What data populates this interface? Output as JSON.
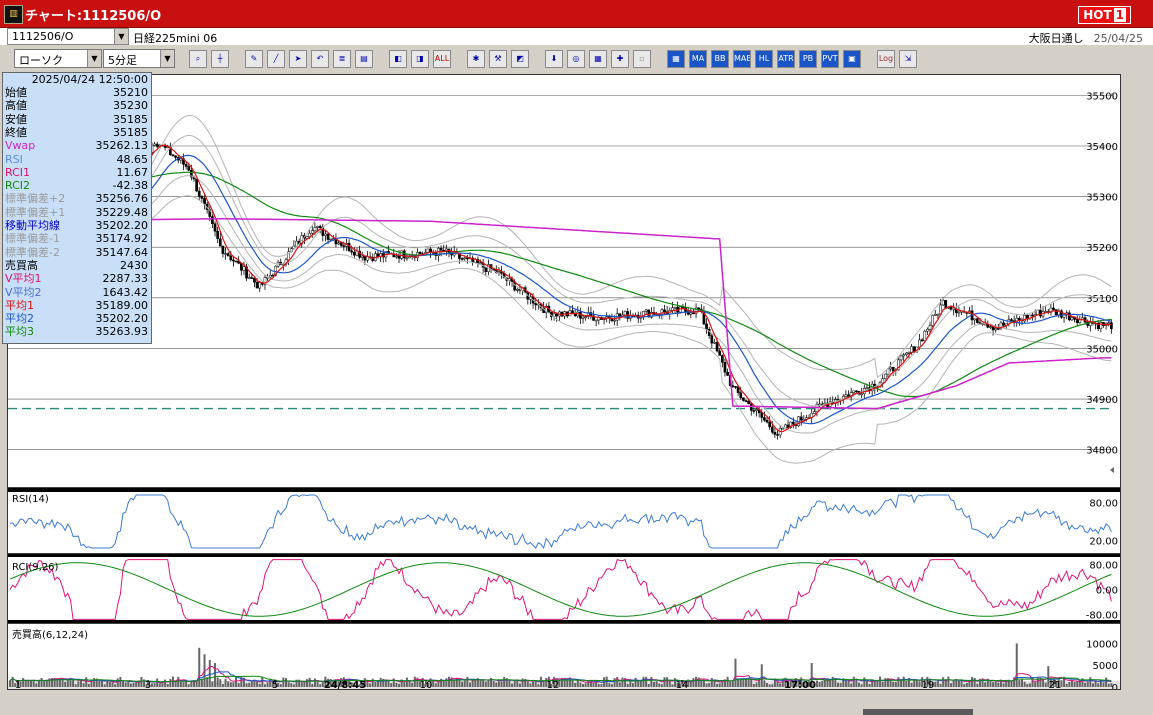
{
  "window": {
    "title": "チャート:1112506/O",
    "hot_label": "HOT",
    "hot_num": "1",
    "icon": "chart-app-icon"
  },
  "symbol": {
    "code": "1112506/O",
    "name": "日経225mini 06",
    "market": "大阪日通し",
    "date": "25/04/25"
  },
  "toolbar": {
    "chart_type": "ローソク",
    "interval": "5分足"
  },
  "infobox": {
    "timestamp": "2025/04/24  12:50:00",
    "rows": [
      {
        "label": "始値",
        "value": "35210",
        "color": "#000000"
      },
      {
        "label": "高値",
        "value": "35230",
        "color": "#000000"
      },
      {
        "label": "安値",
        "value": "35185",
        "color": "#000000"
      },
      {
        "label": "終値",
        "value": "35185",
        "color": "#000000"
      },
      {
        "label": "Vwap",
        "value": "35262.13",
        "color": "#cc22cc"
      },
      {
        "label": "RSI",
        "value": "48.65",
        "color": "#5a8ed8"
      },
      {
        "label": "RCI1",
        "value": "11.67",
        "color": "#dd1166"
      },
      {
        "label": "RCI2",
        "value": "-42.38",
        "color": "#118811"
      },
      {
        "label": "標準偏差+2",
        "value": "35256.76",
        "color": "#9a9a9a"
      },
      {
        "label": "標準偏差+1",
        "value": "35229.48",
        "color": "#9a9a9a"
      },
      {
        "label": "移動平均線",
        "value": "35202.20",
        "color": "#0000cc"
      },
      {
        "label": "標準偏差-1",
        "value": "35174.92",
        "color": "#9a9a9a"
      },
      {
        "label": "標準偏差-2",
        "value": "35147.64",
        "color": "#9a9a9a"
      },
      {
        "label": "売買高",
        "value": "2430",
        "color": "#000000"
      },
      {
        "label": "V平均1",
        "value": "2287.33",
        "color": "#dd1166"
      },
      {
        "label": "V平均2",
        "value": "1643.42",
        "color": "#4a6ad8"
      },
      {
        "label": "平均1",
        "value": "35189.00",
        "color": "#dd1111"
      },
      {
        "label": "平均2",
        "value": "35202.20",
        "color": "#1a55c8"
      },
      {
        "label": "平均3",
        "value": "35263.93",
        "color": "#118811"
      }
    ]
  },
  "panels": {
    "rsi_label": "RSI(14)",
    "rci_label": "RCI(9,26)",
    "vol_label": "売買高(6,12,24)"
  },
  "chart_data": {
    "type": "candlestick",
    "price_axis": {
      "ticks": [
        35500,
        35400,
        35300,
        35200,
        35100,
        35000,
        34900,
        34800
      ],
      "ylim": [
        34750,
        35560
      ]
    },
    "dashed_level": 34905,
    "x_ticks": [
      "1",
      "3",
      "5",
      "24/8:45",
      "10",
      "12",
      "14",
      "17:00",
      "19",
      "21"
    ],
    "rsi": {
      "ticks": [
        "80.00",
        "20.00"
      ],
      "ylim": [
        0,
        100
      ]
    },
    "rci": {
      "ticks": [
        "80.00",
        "0.00",
        "-80.00"
      ],
      "ylim": [
        -100,
        100
      ]
    },
    "volume": {
      "ticks": [
        "10000",
        "5000",
        "0"
      ],
      "ylim": [
        0,
        14000
      ]
    },
    "colors": {
      "ma_short": "#dd1111",
      "ma_mid": "#1a55c8",
      "ma_long": "#118811",
      "vwap": "#cc22cc",
      "bands": "#b4b4b4",
      "rsi": "#3b7bd6",
      "rci1": "#e0147a",
      "rci2": "#118811",
      "dash": "#2a8a7a"
    },
    "trend_anchors": [
      [
        0,
        35400
      ],
      [
        20,
        35395
      ],
      [
        38,
        35275
      ],
      [
        55,
        35435
      ],
      [
        68,
        35380
      ],
      [
        80,
        35225
      ],
      [
        95,
        35145
      ],
      [
        115,
        35265
      ],
      [
        135,
        35205
      ],
      [
        165,
        35215
      ],
      [
        185,
        35175
      ],
      [
        205,
        35095
      ],
      [
        225,
        35085
      ],
      [
        245,
        35095
      ],
      [
        262,
        35100
      ],
      [
        275,
        34945
      ],
      [
        292,
        34855
      ],
      [
        310,
        34915
      ],
      [
        330,
        34955
      ],
      [
        345,
        35030
      ],
      [
        355,
        35115
      ],
      [
        375,
        35065
      ],
      [
        395,
        35100
      ],
      [
        415,
        35070
      ]
    ],
    "vwap_anchors": [
      [
        0,
        35275
      ],
      [
        80,
        35280
      ],
      [
        160,
        35275
      ],
      [
        270,
        35240
      ],
      [
        275,
        34910
      ],
      [
        330,
        34905
      ],
      [
        360,
        34950
      ],
      [
        380,
        34995
      ],
      [
        415,
        35005
      ]
    ],
    "vol_spikes": [
      [
        72,
        9000
      ],
      [
        74,
        7500
      ],
      [
        76,
        6200
      ],
      [
        78,
        5500
      ],
      [
        276,
        6500
      ],
      [
        286,
        5200
      ],
      [
        305,
        5500
      ],
      [
        383,
        10000
      ],
      [
        395,
        4800
      ]
    ]
  }
}
